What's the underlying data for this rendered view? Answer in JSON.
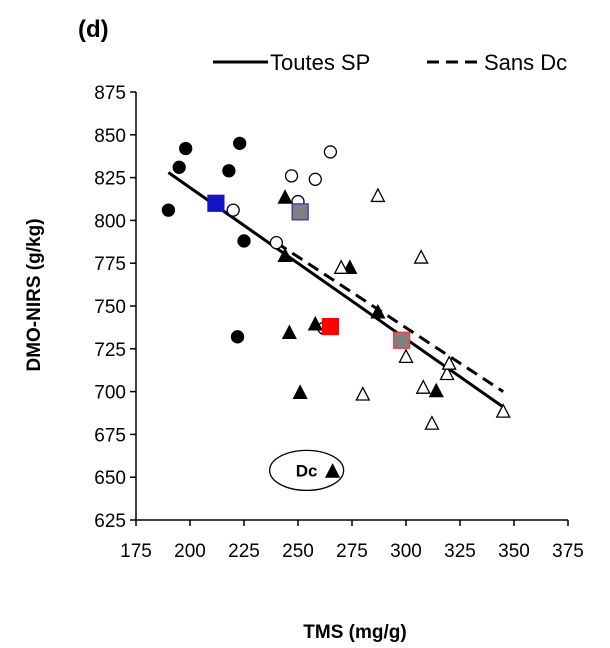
{
  "panel_label": "(d)",
  "chart_data": {
    "type": "scatter",
    "xlabel": "TMS (mg/g)",
    "ylabel": "DMO-NIRS (g/kg)",
    "xlim": [
      175,
      375
    ],
    "ylim": [
      625,
      875
    ],
    "xticks": [
      175,
      200,
      225,
      250,
      275,
      300,
      325,
      350,
      375
    ],
    "yticks": [
      625,
      650,
      675,
      700,
      725,
      750,
      775,
      800,
      825,
      850,
      875
    ],
    "grid": false,
    "legend_position": "top",
    "series": [
      {
        "marker": "filled-circle",
        "color": "#000000",
        "points": [
          [
            190,
            806
          ],
          [
            195,
            831
          ],
          [
            198,
            842
          ],
          [
            218,
            829
          ],
          [
            222,
            732
          ],
          [
            223,
            845
          ],
          [
            225,
            788
          ]
        ]
      },
      {
        "marker": "open-circle",
        "color": "#000000",
        "points": [
          [
            220,
            806
          ],
          [
            240,
            787
          ],
          [
            247,
            826
          ],
          [
            250,
            811
          ],
          [
            258,
            824
          ],
          [
            262,
            737
          ],
          [
            265,
            840
          ]
        ]
      },
      {
        "marker": "filled-triangle",
        "color": "#000000",
        "points": [
          [
            244,
            813
          ],
          [
            244,
            779
          ],
          [
            246,
            734
          ],
          [
            251,
            699
          ],
          [
            258,
            739
          ],
          [
            274,
            772
          ],
          [
            287,
            746
          ],
          [
            314,
            700
          ],
          [
            266,
            653
          ]
        ]
      },
      {
        "marker": "open-triangle",
        "color": "#000000",
        "points": [
          [
            270,
            772
          ],
          [
            280,
            698
          ],
          [
            287,
            814
          ],
          [
            300,
            720
          ],
          [
            307,
            778
          ],
          [
            308,
            702
          ],
          [
            312,
            681
          ],
          [
            319,
            710
          ],
          [
            320,
            716
          ],
          [
            345,
            688
          ]
        ]
      },
      {
        "marker": "square",
        "color": "#1414c8",
        "points": [
          [
            212,
            810
          ]
        ]
      },
      {
        "marker": "square",
        "color": "#808080",
        "stroke": "#2b2bd0",
        "points": [
          [
            251,
            805
          ]
        ]
      },
      {
        "marker": "square",
        "color": "#ff0000",
        "points": [
          [
            265,
            738
          ]
        ]
      },
      {
        "marker": "square",
        "color": "#808080",
        "stroke": "#ff3030",
        "points": [
          [
            298,
            730
          ]
        ]
      }
    ],
    "lines": [
      {
        "name": "Toutes SP",
        "style": "solid",
        "x": [
          190,
          345
        ],
        "y": [
          828,
          691
        ]
      },
      {
        "name": "Sans Dc",
        "style": "dashed",
        "x": [
          240,
          345
        ],
        "y": [
          787,
          700
        ]
      }
    ],
    "annotations": [
      {
        "text": "Dc",
        "x": 254,
        "y": 654,
        "shape": "ellipse"
      }
    ]
  }
}
